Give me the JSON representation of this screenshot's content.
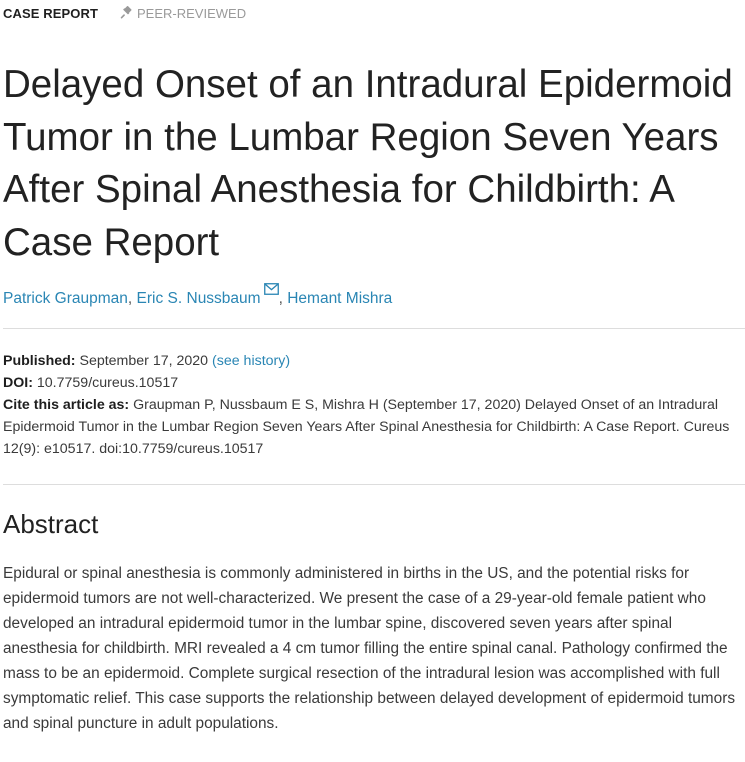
{
  "tags": {
    "article_type": "CASE REPORT",
    "peer_reviewed": "PEER-REVIEWED"
  },
  "title": "Delayed Onset of an Intradural Epidermoid Tumor in the Lumbar Region Seven Years After Spinal Anesthesia for Childbirth: A Case Report",
  "authors": {
    "list": [
      "Patrick Graupman",
      "Eric S. Nussbaum",
      "Hemant Mishra"
    ],
    "separator": ","
  },
  "icons": {
    "peer_reviewed": "pin-icon",
    "corresponding_author": "mail-icon"
  },
  "meta": {
    "published_label": "Published:",
    "published_value": "September 17, 2020",
    "history_link": "(see history)",
    "doi_label": "DOI:",
    "doi_value": "10.7759/cureus.10517",
    "cite_label": "Cite this article as:",
    "cite_value": "Graupman P, Nussbaum E S, Mishra H (September 17, 2020) Delayed Onset of an Intradural Epidermoid Tumor in the Lumbar Region Seven Years After Spinal Anesthesia for Childbirth: A Case Report. Cureus 12(9): e10517. doi:10.7759/cureus.10517"
  },
  "abstract": {
    "heading": "Abstract",
    "text": "Epidural or spinal anesthesia is commonly administered in births in the US, and the potential risks for epidermoid tumors are not well-characterized. We present the case of a 29-year-old female patient who developed an intradural epidermoid tumor in the lumbar spine, discovered seven years after spinal anesthesia for childbirth. MRI revealed a 4 cm tumor filling the entire spinal canal. Pathology confirmed the mass to be an epidermoid. Complete surgical resection of the intradural lesion was accomplished with full symptomatic relief. This case supports the relationship between delayed development of epidermoid tumors and spinal puncture in adult populations."
  },
  "colors": {
    "link": "#2a86b4",
    "heading": "#222222",
    "muted": "#9a9a9a",
    "rule": "#dddddd"
  }
}
